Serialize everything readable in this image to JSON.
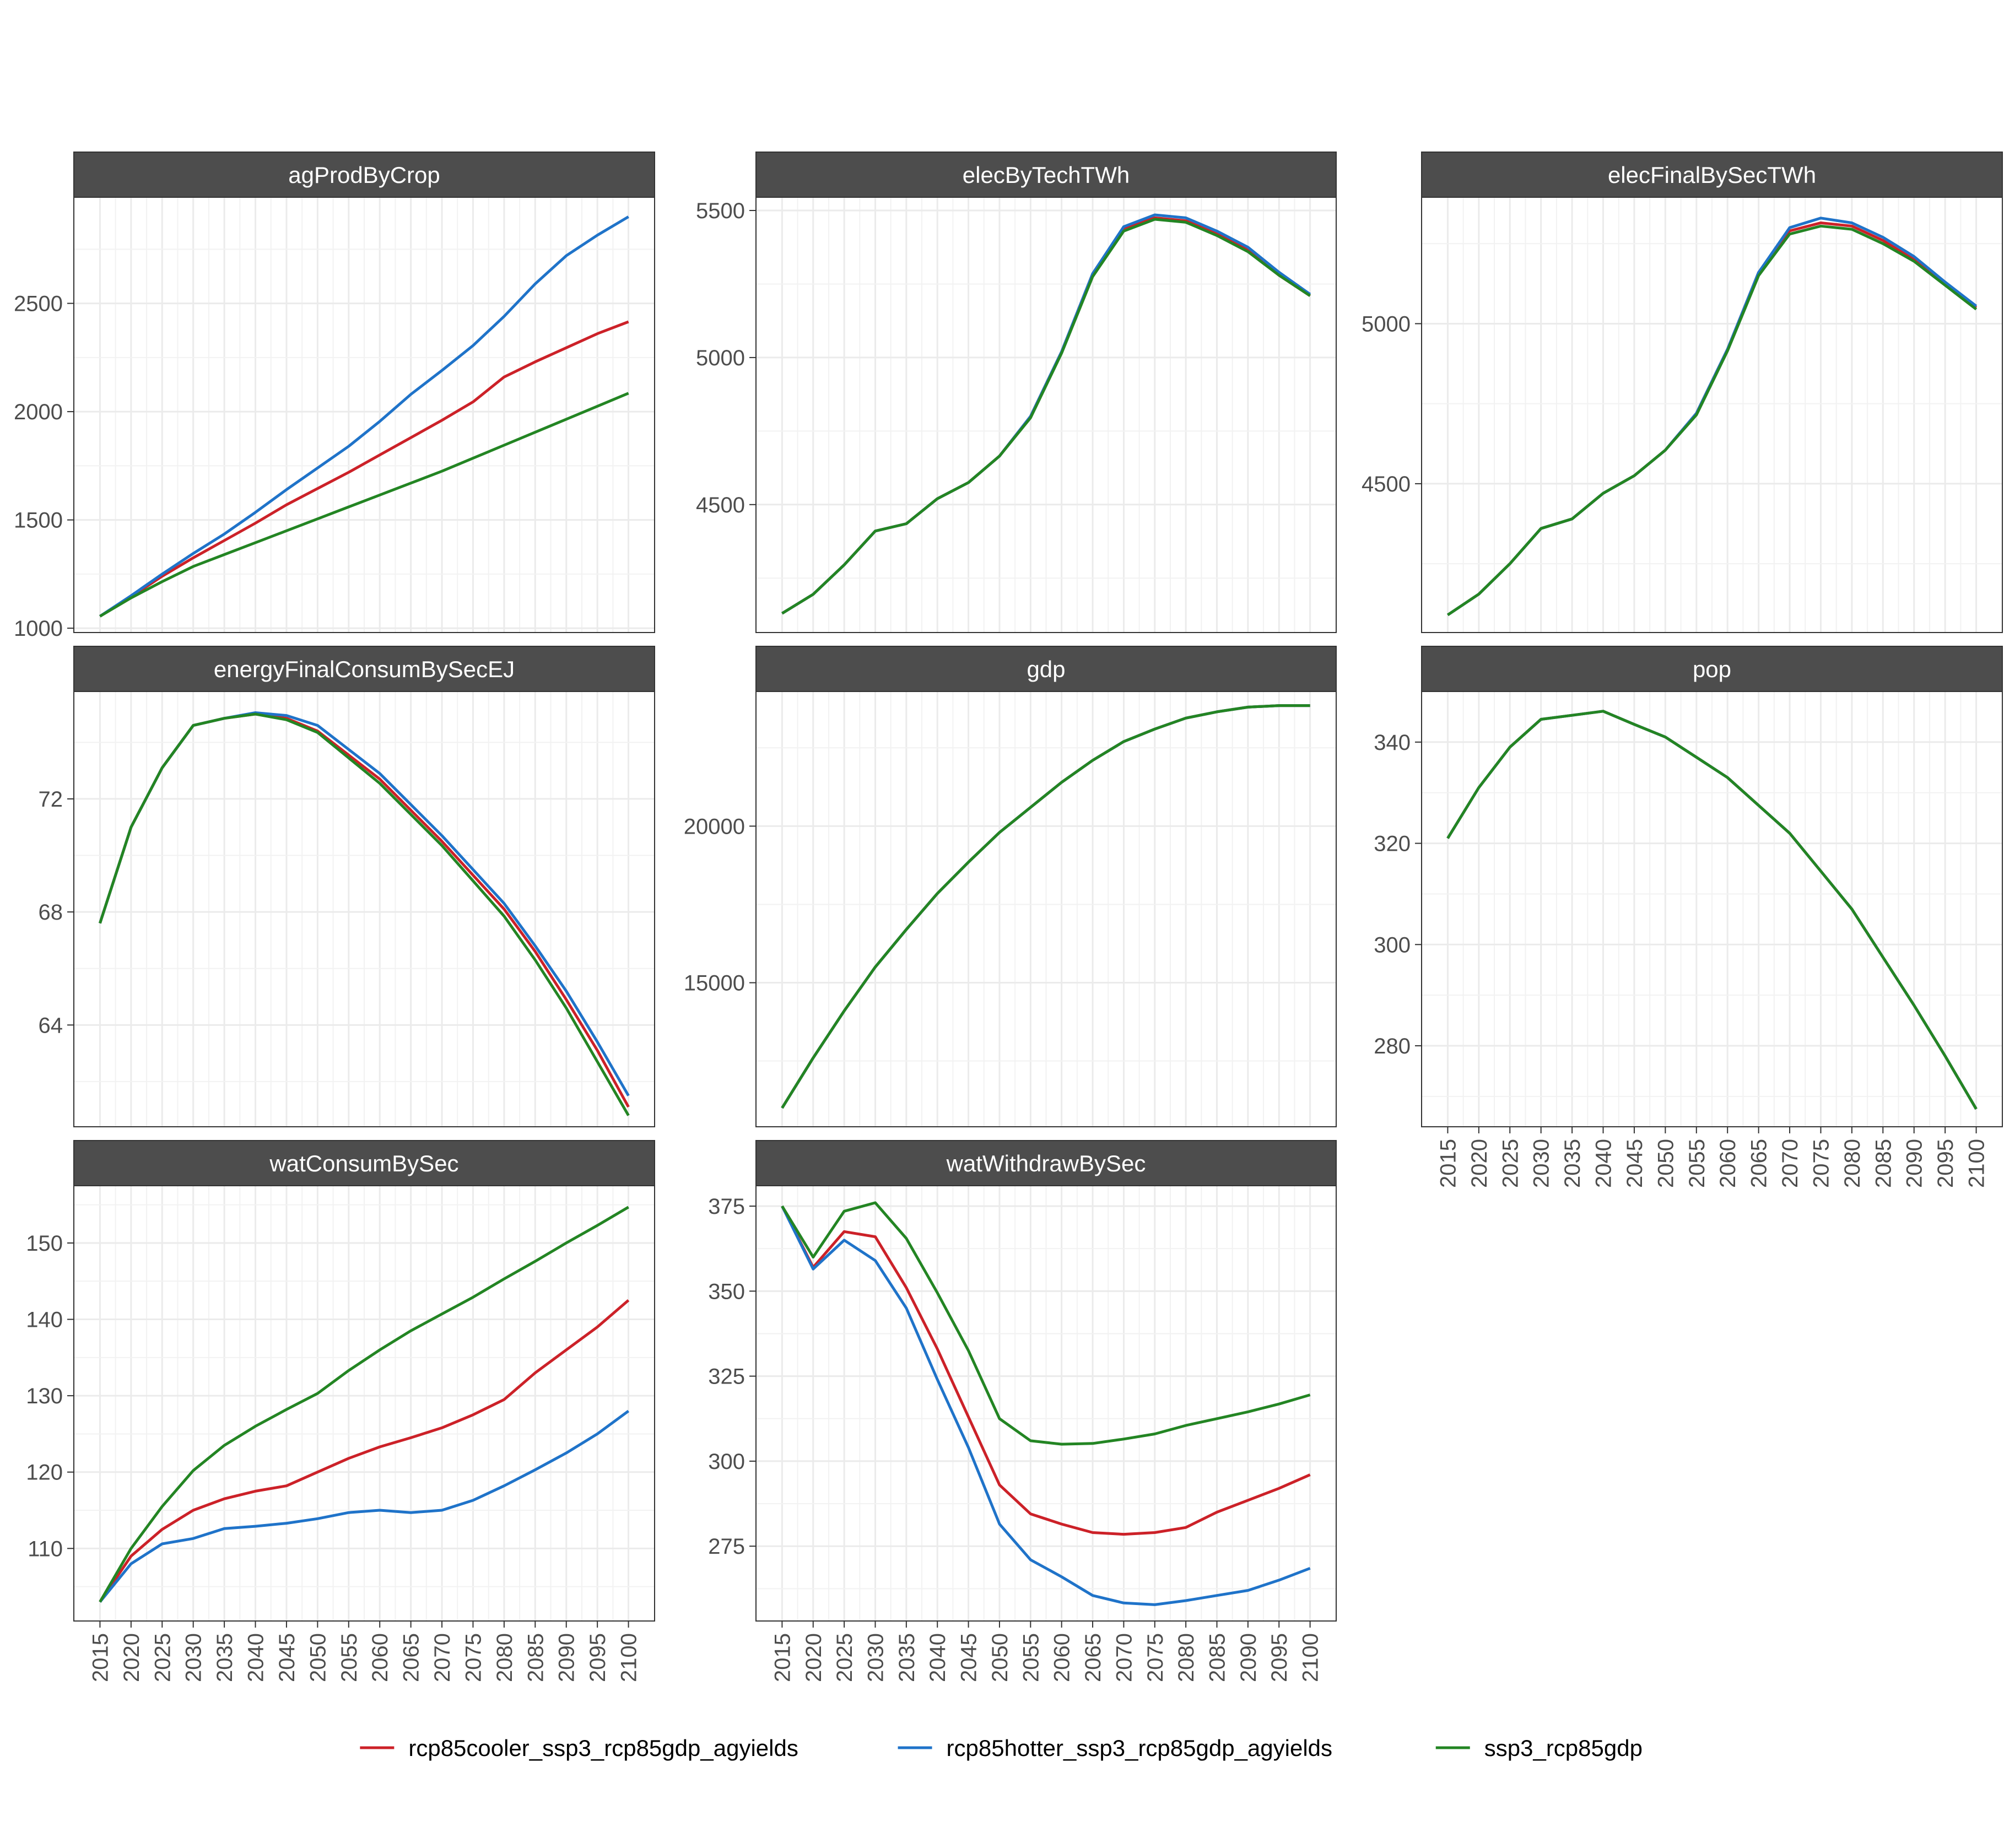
{
  "legend": {
    "items": [
      {
        "label": "rcp85cooler_ssp3_rcp85gdp_agyields",
        "color": "#cc2128"
      },
      {
        "label": "rcp85hotter_ssp3_rcp85gdp_agyields",
        "color": "#1f73c9"
      },
      {
        "label": "ssp3_rcp85gdp",
        "color": "#238523"
      }
    ],
    "placement": "bottom"
  },
  "x_ticks": [
    "2015",
    "2020",
    "2025",
    "2030",
    "2035",
    "2040",
    "2045",
    "2050",
    "2055",
    "2060",
    "2065",
    "2070",
    "2075",
    "2080",
    "2085",
    "2090",
    "2095",
    "2100"
  ],
  "chart_data": [
    {
      "type": "line",
      "title": "agProdByCrop",
      "x": [
        2015,
        2020,
        2025,
        2030,
        2035,
        2040,
        2045,
        2050,
        2055,
        2060,
        2065,
        2070,
        2075,
        2080,
        2085,
        2090,
        2095,
        2100
      ],
      "ylim": [
        980,
        2990
      ],
      "yticks": [
        1000,
        1500,
        2000,
        2500
      ],
      "series": [
        {
          "name": "rcp85cooler_ssp3_rcp85gdp_agyields",
          "values": [
            1055,
            1145,
            1240,
            1325,
            1405,
            1485,
            1570,
            1645,
            1720,
            1800,
            1880,
            1960,
            2045,
            2160,
            2230,
            2295,
            2360,
            2415
          ]
        },
        {
          "name": "rcp85hotter_ssp3_rcp85gdp_agyields",
          "values": [
            1055,
            1150,
            1250,
            1345,
            1435,
            1535,
            1640,
            1740,
            1840,
            1955,
            2080,
            2190,
            2305,
            2440,
            2590,
            2720,
            2815,
            2900
          ]
        },
        {
          "name": "ssp3_rcp85gdp",
          "values": [
            1055,
            1140,
            1215,
            1285,
            1340,
            1395,
            1450,
            1505,
            1560,
            1615,
            1670,
            1725,
            1785,
            1845,
            1905,
            1965,
            2025,
            2085
          ]
        }
      ]
    },
    {
      "type": "line",
      "title": "elecByTechTWh",
      "x": [
        2015,
        2020,
        2025,
        2030,
        2035,
        2040,
        2045,
        2050,
        2055,
        2060,
        2065,
        2070,
        2075,
        2080,
        2085,
        2090,
        2095,
        2100
      ],
      "ylim": [
        4065,
        5545
      ],
      "yticks": [
        4500,
        5000,
        5500
      ],
      "series": [
        {
          "name": "rcp85cooler_ssp3_rcp85gdp_agyields",
          "values": [
            4130,
            4195,
            4295,
            4410,
            4435,
            4520,
            4575,
            4665,
            4800,
            5020,
            5285,
            5440,
            5475,
            5465,
            5420,
            5365,
            5280,
            5210
          ]
        },
        {
          "name": "rcp85hotter_ssp3_rcp85gdp_agyields",
          "values": [
            4130,
            4195,
            4295,
            4410,
            4435,
            4520,
            4575,
            4665,
            4800,
            5020,
            5285,
            5445,
            5485,
            5475,
            5430,
            5375,
            5290,
            5215
          ]
        },
        {
          "name": "ssp3_rcp85gdp",
          "values": [
            4130,
            4195,
            4295,
            4410,
            4435,
            4520,
            4575,
            4665,
            4795,
            5015,
            5275,
            5430,
            5470,
            5460,
            5415,
            5360,
            5280,
            5210
          ]
        }
      ]
    },
    {
      "type": "line",
      "title": "elecFinalBySecTWh",
      "x": [
        2015,
        2020,
        2025,
        2030,
        2035,
        2040,
        2045,
        2050,
        2055,
        2060,
        2065,
        2070,
        2075,
        2080,
        2085,
        2090,
        2095,
        2100
      ],
      "ylim": [
        4035,
        5395
      ],
      "yticks": [
        4500,
        5000
      ],
      "series": [
        {
          "name": "rcp85cooler_ssp3_rcp85gdp_agyields",
          "values": [
            4090,
            4155,
            4250,
            4360,
            4390,
            4470,
            4525,
            4605,
            4720,
            4920,
            5160,
            5290,
            5315,
            5305,
            5260,
            5200,
            5125,
            5050
          ]
        },
        {
          "name": "rcp85hotter_ssp3_rcp85gdp_agyields",
          "values": [
            4090,
            4155,
            4250,
            4360,
            4390,
            4470,
            4525,
            4605,
            4720,
            4920,
            5160,
            5300,
            5330,
            5315,
            5270,
            5210,
            5130,
            5055
          ]
        },
        {
          "name": "ssp3_rcp85gdp",
          "values": [
            4090,
            4155,
            4250,
            4360,
            4390,
            4470,
            4525,
            4605,
            4715,
            4915,
            5150,
            5280,
            5305,
            5295,
            5250,
            5195,
            5120,
            5045
          ]
        }
      ]
    },
    {
      "type": "line",
      "title": "energyFinalConsumBySecEJ",
      "x": [
        2015,
        2020,
        2025,
        2030,
        2035,
        2040,
        2045,
        2050,
        2055,
        2060,
        2065,
        2070,
        2075,
        2080,
        2085,
        2090,
        2095,
        2100
      ],
      "ylim": [
        60.4,
        75.8
      ],
      "yticks": [
        64,
        68,
        72
      ],
      "series": [
        {
          "name": "rcp85cooler_ssp3_rcp85gdp_agyields",
          "values": [
            67.6,
            71.0,
            73.1,
            74.6,
            74.85,
            75.0,
            74.85,
            74.4,
            73.55,
            72.7,
            71.6,
            70.5,
            69.3,
            68.1,
            66.6,
            64.9,
            63.1,
            61.1
          ]
        },
        {
          "name": "rcp85hotter_ssp3_rcp85gdp_agyields",
          "values": [
            67.6,
            71.0,
            73.1,
            74.6,
            74.85,
            75.05,
            74.95,
            74.6,
            73.75,
            72.9,
            71.8,
            70.7,
            69.5,
            68.3,
            66.8,
            65.2,
            63.4,
            61.5
          ]
        },
        {
          "name": "ssp3_rcp85gdp",
          "values": [
            67.6,
            71.0,
            73.1,
            74.6,
            74.85,
            75.0,
            74.8,
            74.35,
            73.45,
            72.55,
            71.45,
            70.35,
            69.1,
            67.85,
            66.3,
            64.6,
            62.7,
            60.8
          ]
        }
      ]
    },
    {
      "type": "line",
      "title": "gdp",
      "x": [
        2015,
        2020,
        2025,
        2030,
        2035,
        2040,
        2045,
        2050,
        2055,
        2060,
        2065,
        2070,
        2075,
        2080,
        2085,
        2090,
        2095,
        2100
      ],
      "ylim": [
        10400,
        24300
      ],
      "yticks": [
        15000,
        20000
      ],
      "series": [
        {
          "name": "rcp85cooler_ssp3_rcp85gdp_agyields",
          "values": [
            11000,
            12600,
            14100,
            15500,
            16700,
            17850,
            18850,
            19800,
            20600,
            21400,
            22100,
            22700,
            23100,
            23450,
            23650,
            23800,
            23850,
            23850
          ]
        },
        {
          "name": "rcp85hotter_ssp3_rcp85gdp_agyields",
          "values": [
            11000,
            12600,
            14100,
            15500,
            16700,
            17850,
            18850,
            19800,
            20600,
            21400,
            22100,
            22700,
            23100,
            23450,
            23650,
            23800,
            23850,
            23850
          ]
        },
        {
          "name": "ssp3_rcp85gdp",
          "values": [
            11000,
            12600,
            14100,
            15500,
            16700,
            17850,
            18850,
            19800,
            20600,
            21400,
            22100,
            22700,
            23100,
            23450,
            23650,
            23800,
            23850,
            23850
          ]
        }
      ]
    },
    {
      "type": "line",
      "title": "pop",
      "x": [
        2015,
        2020,
        2025,
        2030,
        2035,
        2040,
        2045,
        2050,
        2055,
        2060,
        2065,
        2070,
        2075,
        2080,
        2085,
        2090,
        2095,
        2100
      ],
      "ylim": [
        264,
        350
      ],
      "yticks": [
        280,
        300,
        320,
        340
      ],
      "series": [
        {
          "name": "rcp85cooler_ssp3_rcp85gdp_agyields",
          "values": [
            321,
            331,
            339,
            344.5,
            345.3,
            346.1,
            343.5,
            341,
            337,
            333,
            327.5,
            322,
            314.5,
            307,
            297.5,
            288,
            278,
            267.5
          ]
        },
        {
          "name": "rcp85hotter_ssp3_rcp85gdp_agyields",
          "values": [
            321,
            331,
            339,
            344.5,
            345.3,
            346.1,
            343.5,
            341,
            337,
            333,
            327.5,
            322,
            314.5,
            307,
            297.5,
            288,
            278,
            267.5
          ]
        },
        {
          "name": "ssp3_rcp85gdp",
          "values": [
            321,
            331,
            339,
            344.5,
            345.3,
            346.1,
            343.5,
            341,
            337,
            333,
            327.5,
            322,
            314.5,
            307,
            297.5,
            288,
            278,
            267.5
          ]
        }
      ]
    },
    {
      "type": "line",
      "title": "watConsumBySec",
      "x": [
        2015,
        2020,
        2025,
        2030,
        2035,
        2040,
        2045,
        2050,
        2055,
        2060,
        2065,
        2070,
        2075,
        2080,
        2085,
        2090,
        2095,
        2100
      ],
      "ylim": [
        100.5,
        157.5
      ],
      "yticks": [
        110,
        120,
        130,
        140,
        150
      ],
      "series": [
        {
          "name": "rcp85cooler_ssp3_rcp85gdp_agyields",
          "values": [
            103,
            109,
            112.5,
            115,
            116.5,
            117.5,
            118.2,
            120,
            121.8,
            123.3,
            124.5,
            125.8,
            127.5,
            129.5,
            133,
            136,
            139,
            142.5
          ]
        },
        {
          "name": "rcp85hotter_ssp3_rcp85gdp_agyields",
          "values": [
            103,
            108,
            110.6,
            111.3,
            112.6,
            112.9,
            113.3,
            113.9,
            114.7,
            115,
            114.7,
            115,
            116.3,
            118.2,
            120.3,
            122.5,
            125,
            128
          ]
        },
        {
          "name": "ssp3_rcp85gdp",
          "values": [
            103,
            110,
            115.5,
            120.2,
            123.5,
            126,
            128.2,
            130.3,
            133.3,
            136,
            138.5,
            140.7,
            142.9,
            145.3,
            147.6,
            150,
            152.3,
            154.7
          ]
        }
      ]
    },
    {
      "type": "line",
      "title": "watWithdrawBySec",
      "x": [
        2015,
        2020,
        2025,
        2030,
        2035,
        2040,
        2045,
        2050,
        2055,
        2060,
        2065,
        2070,
        2075,
        2080,
        2085,
        2090,
        2095,
        2100
      ],
      "ylim": [
        253,
        381
      ],
      "yticks": [
        275,
        300,
        325,
        350,
        375
      ],
      "series": [
        {
          "name": "rcp85cooler_ssp3_rcp85gdp_agyields",
          "values": [
            375,
            357,
            367.5,
            366,
            351,
            333,
            313,
            293,
            284.5,
            281.5,
            279,
            278.5,
            279,
            280.5,
            285,
            288.5,
            292,
            296
          ]
        },
        {
          "name": "rcp85hotter_ssp3_rcp85gdp_agyields",
          "values": [
            375,
            356.5,
            365,
            359,
            345,
            324,
            304,
            281.5,
            271,
            266,
            260.5,
            258.3,
            257.8,
            259,
            260.5,
            262,
            265,
            268.5
          ]
        },
        {
          "name": "ssp3_rcp85gdp",
          "values": [
            375,
            360,
            373.5,
            376,
            365.5,
            349.5,
            332.5,
            312.5,
            306,
            305,
            305.2,
            306.5,
            308,
            310.5,
            312.5,
            314.5,
            316.8,
            319.5
          ]
        }
      ]
    }
  ]
}
